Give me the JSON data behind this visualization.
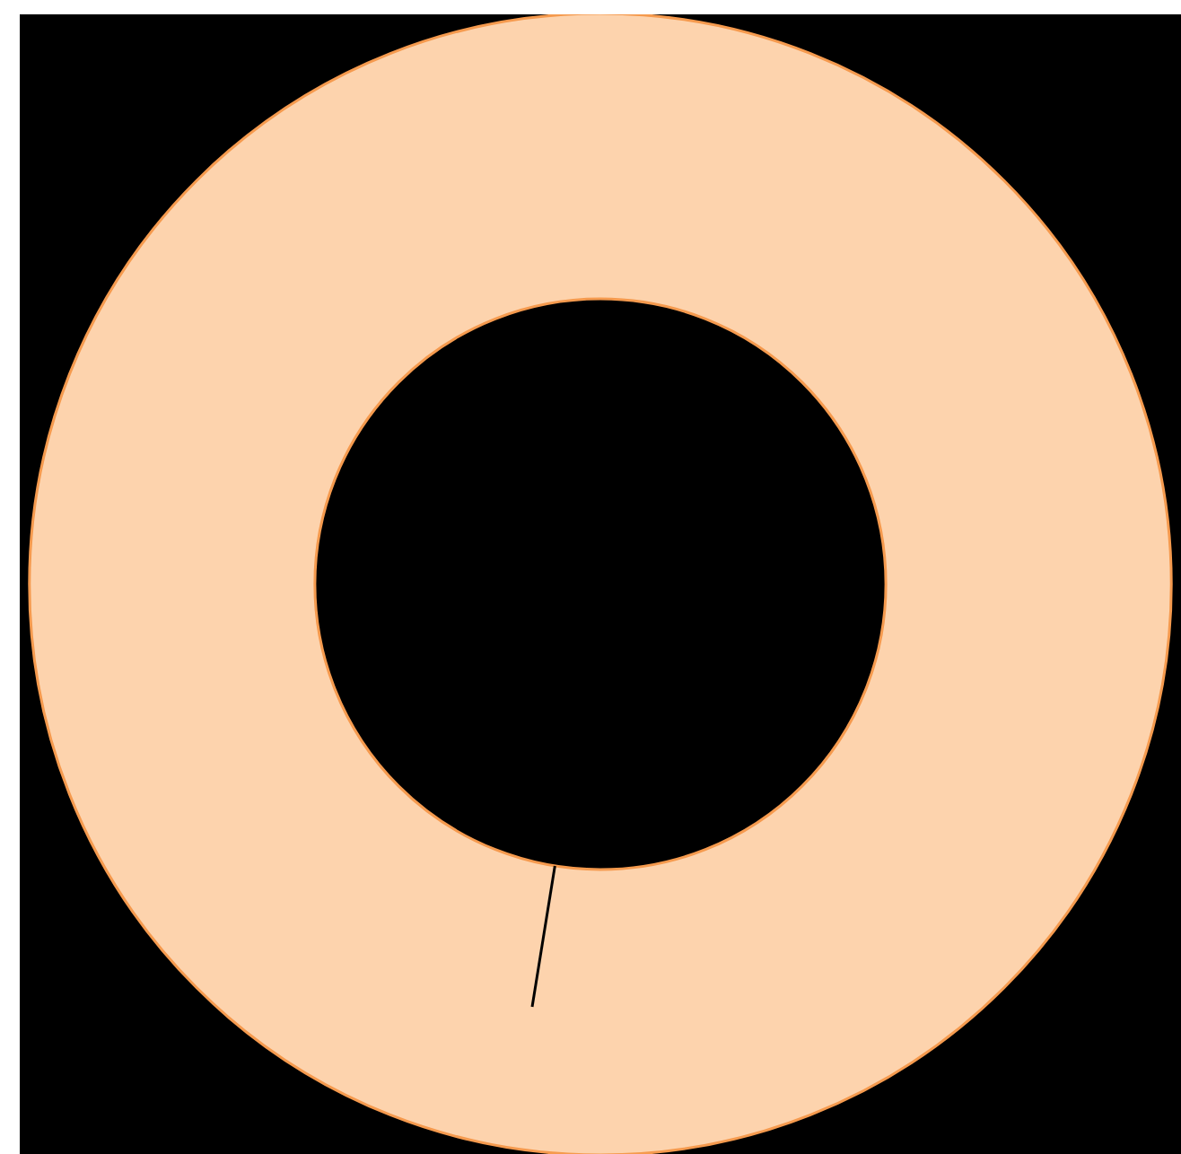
{
  "chart_data": {
    "type": "donut",
    "categories": [
      null
    ],
    "values": [
      100
    ],
    "colors": [
      "#fdd3ad"
    ]
  }
}
